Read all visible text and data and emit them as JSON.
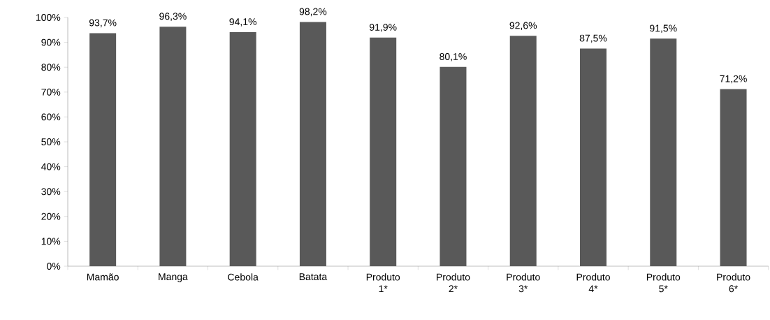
{
  "chart_data": {
    "type": "bar",
    "categories": [
      "Mamão",
      "Manga",
      "Cebola",
      "Batata",
      "Produto 1*",
      "Produto 2*",
      "Produto 3*",
      "Produto 4*",
      "Produto 5*",
      "Produto 6*"
    ],
    "values": [
      93.7,
      96.3,
      94.1,
      98.2,
      91.9,
      80.1,
      92.6,
      87.5,
      91.5,
      71.2
    ],
    "value_labels": [
      "93,7%",
      "96,3%",
      "94,1%",
      "98,2%",
      "91,9%",
      "80,1%",
      "92,6%",
      "87,5%",
      "91,5%",
      "71,2%"
    ],
    "color": "#595959",
    "ylim": [
      0,
      100
    ],
    "yticks": [
      {
        "value": 0,
        "label": "0%"
      },
      {
        "value": 10,
        "label": "10%"
      },
      {
        "value": 20,
        "label": "20%"
      },
      {
        "value": 30,
        "label": "30%"
      },
      {
        "value": 40,
        "label": "40%"
      },
      {
        "value": 50,
        "label": "50%"
      },
      {
        "value": 60,
        "label": "60%"
      },
      {
        "value": 70,
        "label": "70%"
      },
      {
        "value": 80,
        "label": "80%"
      },
      {
        "value": 90,
        "label": "90%"
      },
      {
        "value": 100,
        "label": "100%"
      }
    ],
    "grid": false
  }
}
